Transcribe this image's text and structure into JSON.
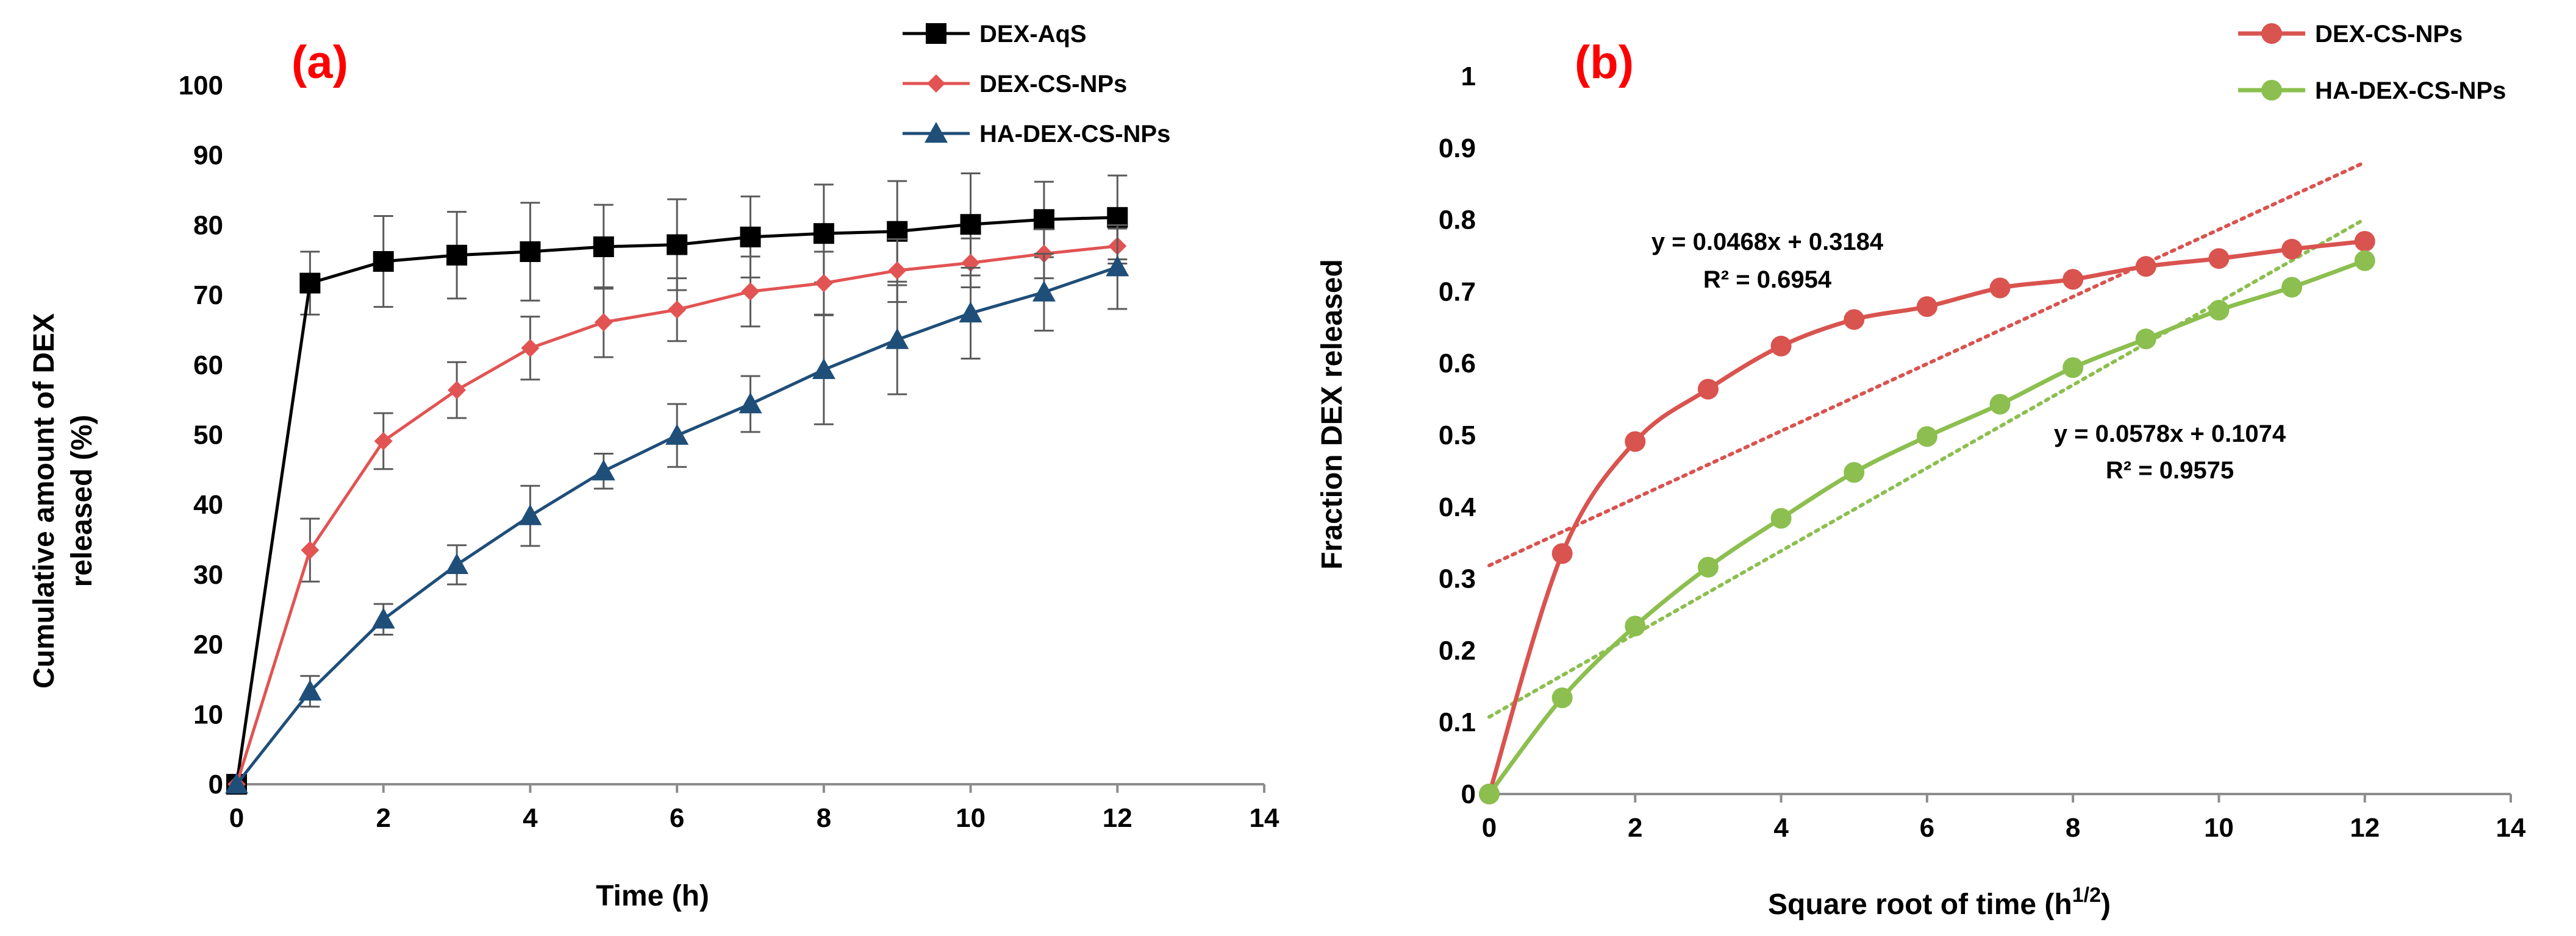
{
  "chart_data": [
    {
      "type": "line",
      "panel_label": "(a)",
      "xlabel": "Time (h)",
      "ylabel_lines": [
        "Cumulative amount of  DEX",
        "released (%)"
      ],
      "xlim": [
        0,
        14
      ],
      "ylim": [
        0,
        100
      ],
      "xticks": [
        0,
        2,
        4,
        6,
        8,
        10,
        12,
        14
      ],
      "yticks": [
        0,
        10,
        20,
        30,
        40,
        50,
        60,
        70,
        80,
        90,
        100
      ],
      "grid": false,
      "legend_position": "top-right",
      "series": [
        {
          "name": "DEX-AqS",
          "color": "#000000",
          "marker": "square",
          "x": [
            0,
            1,
            2,
            3,
            4,
            5,
            6,
            7,
            8,
            9,
            10,
            11,
            12
          ],
          "values": [
            0,
            71.7,
            74.8,
            75.7,
            76.2,
            76.9,
            77.2,
            78.3,
            78.8,
            79.1,
            80.1,
            80.8,
            81.1
          ],
          "errors": [
            0,
            4.5,
            6.5,
            6.2,
            7.0,
            6.0,
            6.5,
            5.8,
            7.0,
            7.2,
            7.3,
            5.4,
            6.0
          ]
        },
        {
          "name": "DEX-CS-NPs",
          "color": "#e25353",
          "marker": "diamond",
          "x": [
            0,
            1,
            2,
            3,
            4,
            5,
            6,
            7,
            8,
            9,
            10,
            11,
            12
          ],
          "values": [
            0,
            33.5,
            49.1,
            56.4,
            62.4,
            66.1,
            67.9,
            70.5,
            71.7,
            73.5,
            74.6,
            75.9,
            77.0
          ],
          "errors": [
            0,
            4.5,
            4.0,
            4.0,
            4.5,
            5.0,
            4.5,
            5.0,
            4.5,
            4.5,
            3.5,
            3.5,
            2.5
          ]
        },
        {
          "name": "HA-DEX-CS-NPs",
          "color": "#1f4e79",
          "marker": "triangle",
          "x": [
            0,
            1,
            2,
            3,
            4,
            5,
            6,
            7,
            8,
            9,
            10,
            11,
            12
          ],
          "values": [
            0,
            13.3,
            23.6,
            31.4,
            38.4,
            44.8,
            49.9,
            54.4,
            59.3,
            63.6,
            67.4,
            70.4,
            74.0
          ],
          "errors": [
            0,
            2.2,
            2.2,
            2.8,
            4.3,
            2.5,
            4.5,
            4.0,
            7.8,
            7.8,
            6.5,
            5.5,
            6.0
          ]
        }
      ]
    },
    {
      "type": "line",
      "panel_label": "(b)",
      "xlabel": "Square root of time (h",
      "xlabel_sup": "1/2",
      "xlabel_end": ")",
      "ylabel": "Fraction DEX released",
      "xlim": [
        0,
        14
      ],
      "ylim": [
        0,
        1
      ],
      "xticks": [
        "0",
        "2",
        "4",
        "6",
        "8",
        "10",
        "12",
        "14"
      ],
      "yticks": [
        "0",
        "0.1",
        "0.2",
        "0.3",
        "0.4",
        "0.5",
        "0.6",
        "0.7",
        "0.8",
        "0.9",
        "1"
      ],
      "grid": false,
      "legend_position": "top-right",
      "series": [
        {
          "name": "DEX-CS-NPs",
          "color": "#d9534f",
          "marker": "circle",
          "x": [
            0,
            1,
            2,
            3,
            4,
            5,
            6,
            7,
            8,
            9,
            10,
            11,
            12
          ],
          "values": [
            0,
            0.335,
            0.491,
            0.564,
            0.624,
            0.661,
            0.679,
            0.705,
            0.717,
            0.735,
            0.746,
            0.759,
            0.77
          ],
          "trendline": {
            "slope": 0.0468,
            "intercept": 0.3184,
            "x_range": [
              0,
              12
            ]
          },
          "equation": "y = 0.0468x + 0.3184",
          "r2": "R² = 0.6954"
        },
        {
          "name": "HA-DEX-CS-NPs",
          "color": "#8cbf4f",
          "marker": "circle",
          "x": [
            0,
            1,
            2,
            3,
            4,
            5,
            6,
            7,
            8,
            9,
            10,
            11,
            12
          ],
          "values": [
            0,
            0.134,
            0.234,
            0.316,
            0.384,
            0.448,
            0.498,
            0.543,
            0.594,
            0.634,
            0.674,
            0.706,
            0.743
          ],
          "trendline": {
            "slope": 0.0578,
            "intercept": 0.1074,
            "x_range": [
              0,
              12
            ]
          },
          "equation": "y = 0.0578x + 0.1074",
          "r2": "R² = 0.9575"
        }
      ]
    }
  ]
}
